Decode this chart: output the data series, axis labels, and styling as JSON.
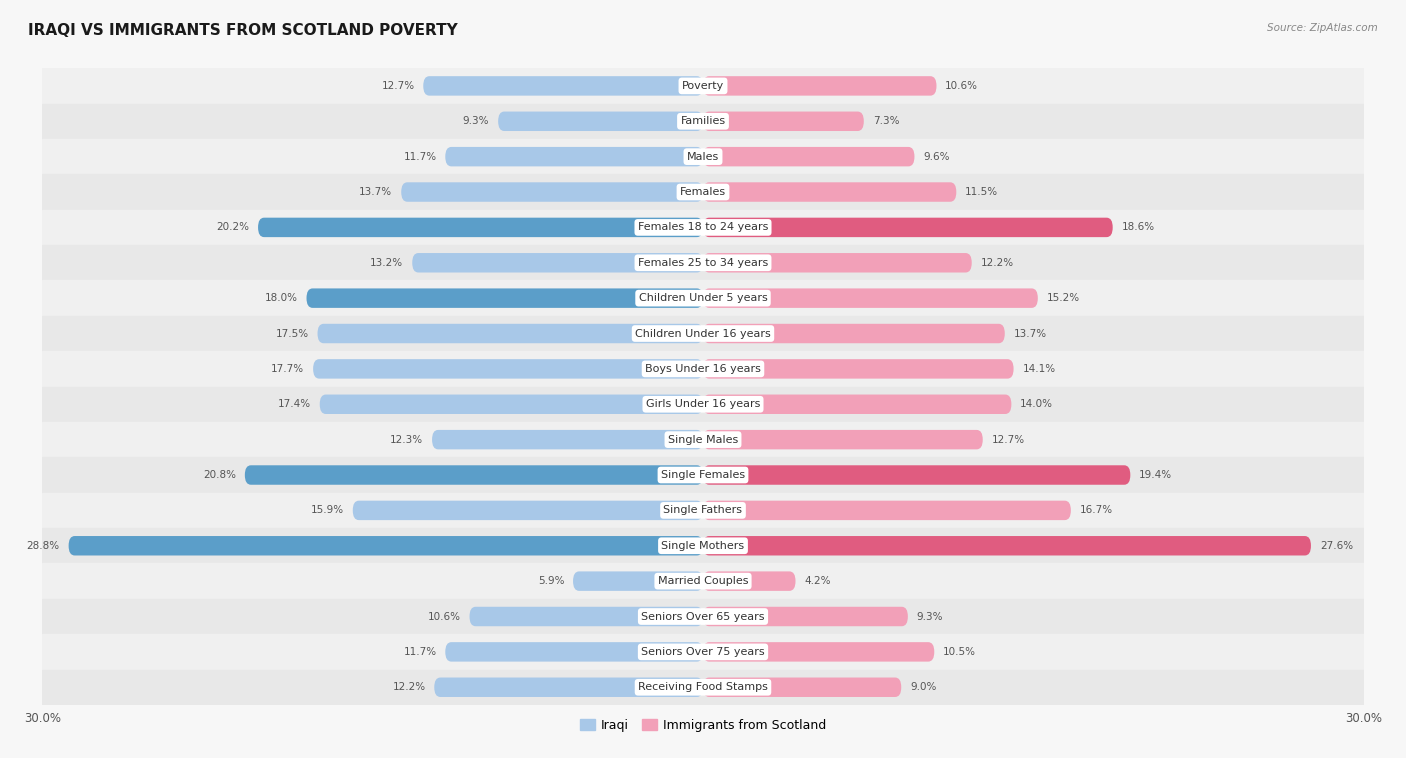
{
  "title": "IRAQI VS IMMIGRANTS FROM SCOTLAND POVERTY",
  "source": "Source: ZipAtlas.com",
  "categories": [
    "Poverty",
    "Families",
    "Males",
    "Females",
    "Females 18 to 24 years",
    "Females 25 to 34 years",
    "Children Under 5 years",
    "Children Under 16 years",
    "Boys Under 16 years",
    "Girls Under 16 years",
    "Single Males",
    "Single Females",
    "Single Fathers",
    "Single Mothers",
    "Married Couples",
    "Seniors Over 65 years",
    "Seniors Over 75 years",
    "Receiving Food Stamps"
  ],
  "iraqi_values": [
    12.7,
    9.3,
    11.7,
    13.7,
    20.2,
    13.2,
    18.0,
    17.5,
    17.7,
    17.4,
    12.3,
    20.8,
    15.9,
    28.8,
    5.9,
    10.6,
    11.7,
    12.2
  ],
  "scotland_values": [
    10.6,
    7.3,
    9.6,
    11.5,
    18.6,
    12.2,
    15.2,
    13.7,
    14.1,
    14.0,
    12.7,
    19.4,
    16.7,
    27.6,
    4.2,
    9.3,
    10.5,
    9.0
  ],
  "iraqi_color_normal": "#a8c8e8",
  "iraqi_color_highlight": "#5b9ec9",
  "scotland_color_normal": "#f2a0b8",
  "scotland_color_highlight": "#e05c80",
  "highlight_iraqi": [
    4,
    6,
    11,
    13
  ],
  "highlight_scotland": [
    4,
    11,
    13
  ],
  "axis_max": 30.0,
  "background_color": "#f7f7f7",
  "row_bg_light": "#f0f0f0",
  "row_bg_dark": "#e8e8e8",
  "title_fontsize": 11,
  "label_fontsize": 8,
  "value_fontsize": 7.5,
  "legend_labels": [
    "Iraqi",
    "Immigrants from Scotland"
  ]
}
